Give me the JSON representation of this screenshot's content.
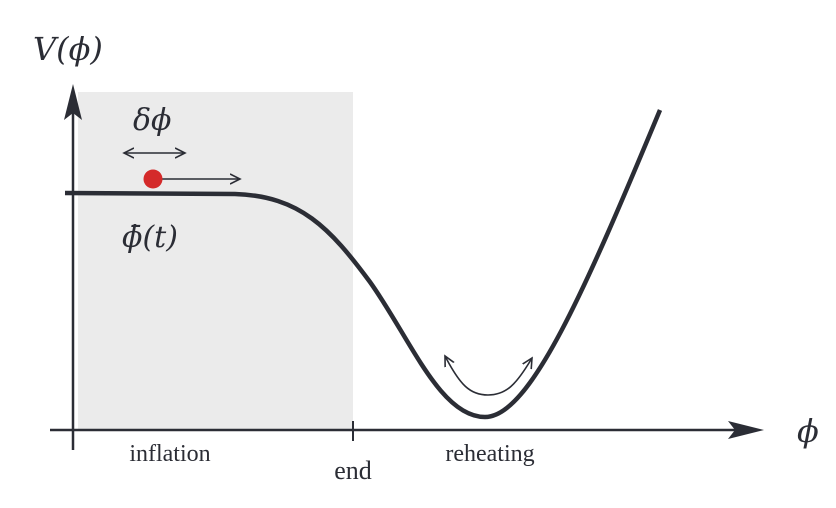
{
  "labels": {
    "y_axis": "V(ϕ)",
    "x_axis": "ϕ",
    "fluctuation": "δϕ",
    "background_field": "ϕ̄(t)",
    "inflation": "inflation",
    "end": "end",
    "reheating": "reheating"
  },
  "colors": {
    "curve": "#2b2d35",
    "inflation_region": "#ebebeb",
    "field_dot": "#d42a2a"
  }
}
